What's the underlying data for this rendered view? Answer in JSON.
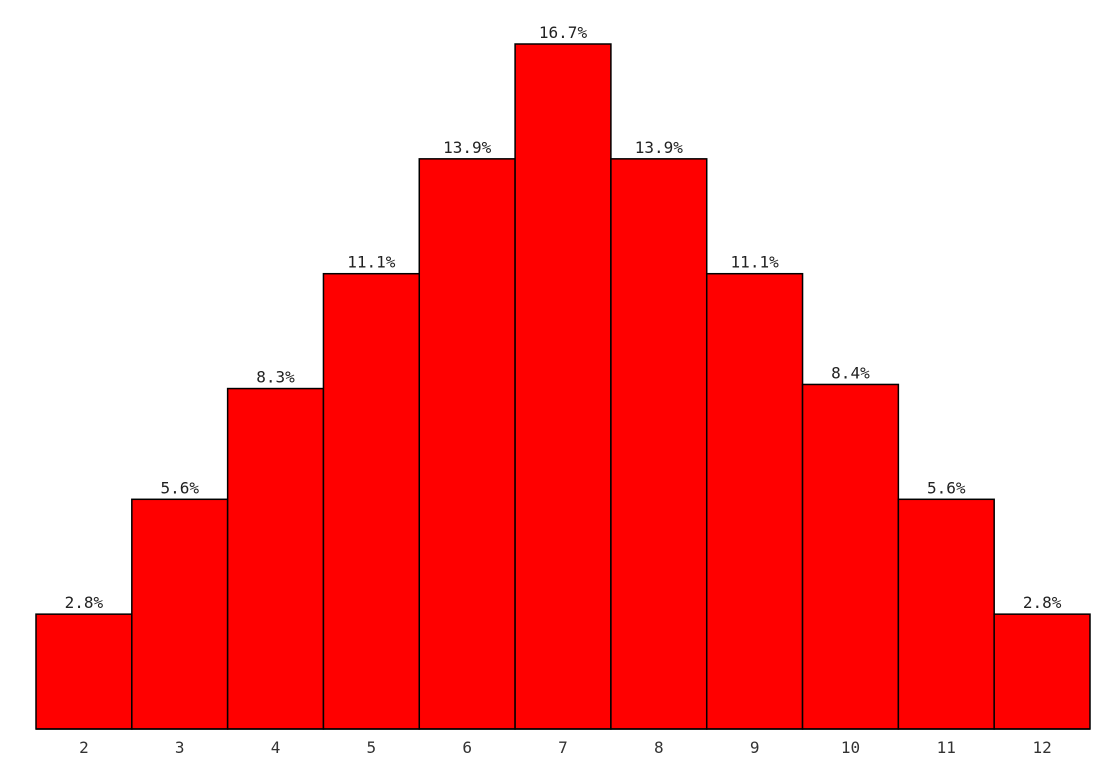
{
  "chart_data": {
    "type": "bar",
    "categories": [
      "2",
      "3",
      "4",
      "5",
      "6",
      "7",
      "8",
      "9",
      "10",
      "11",
      "12"
    ],
    "values": [
      2.8,
      5.6,
      8.3,
      11.1,
      13.9,
      16.7,
      13.9,
      11.1,
      8.4,
      5.6,
      2.8
    ],
    "data_labels": [
      "2.8%",
      "5.6%",
      "8.3%",
      "11.1%",
      "13.9%",
      "16.7%",
      "13.9%",
      "11.1%",
      "8.4%",
      "5.6%",
      "2.8%"
    ],
    "title": "",
    "xlabel": "",
    "ylabel": "",
    "ylim": [
      0,
      16.7
    ],
    "grid": false,
    "legend": "none",
    "bar_color": "#ff0000",
    "bar_edge_color": "#000000"
  }
}
